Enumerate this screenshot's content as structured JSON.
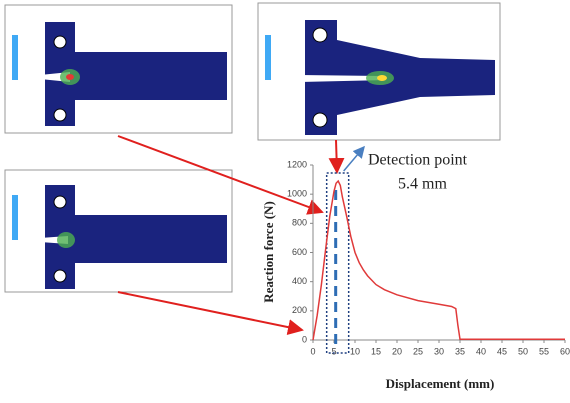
{
  "chart_data": {
    "type": "line",
    "xlabel": "Displacement (mm)",
    "ylabel": "Reaction force (N)",
    "x": [
      0,
      1,
      2,
      3,
      4,
      5,
      5.5,
      6,
      6.5,
      7,
      8,
      9,
      10,
      11,
      12,
      13,
      15,
      17,
      20,
      25,
      30,
      33,
      34,
      34.5,
      35,
      40,
      50,
      60
    ],
    "series": [
      {
        "name": null,
        "color": "#e03a3a",
        "values": [
          0,
          170,
          380,
          620,
          850,
          1020,
          1075,
          1090,
          1060,
          980,
          850,
          710,
          600,
          530,
          480,
          440,
          380,
          345,
          310,
          270,
          245,
          230,
          215,
          100,
          5,
          5,
          5,
          5
        ]
      }
    ],
    "xlim": [
      0,
      60
    ],
    "xticks": [
      0,
      5,
      10,
      15,
      20,
      25,
      30,
      35,
      40,
      45,
      50,
      55,
      60
    ],
    "ylim": [
      0,
      1200
    ],
    "yticks": [
      0,
      200,
      400,
      600,
      800,
      1000,
      1200
    ],
    "annotation": {
      "text": "Detection point",
      "value": 5.4,
      "label": "5.4 mm",
      "color": "#2e6db4"
    }
  }
}
